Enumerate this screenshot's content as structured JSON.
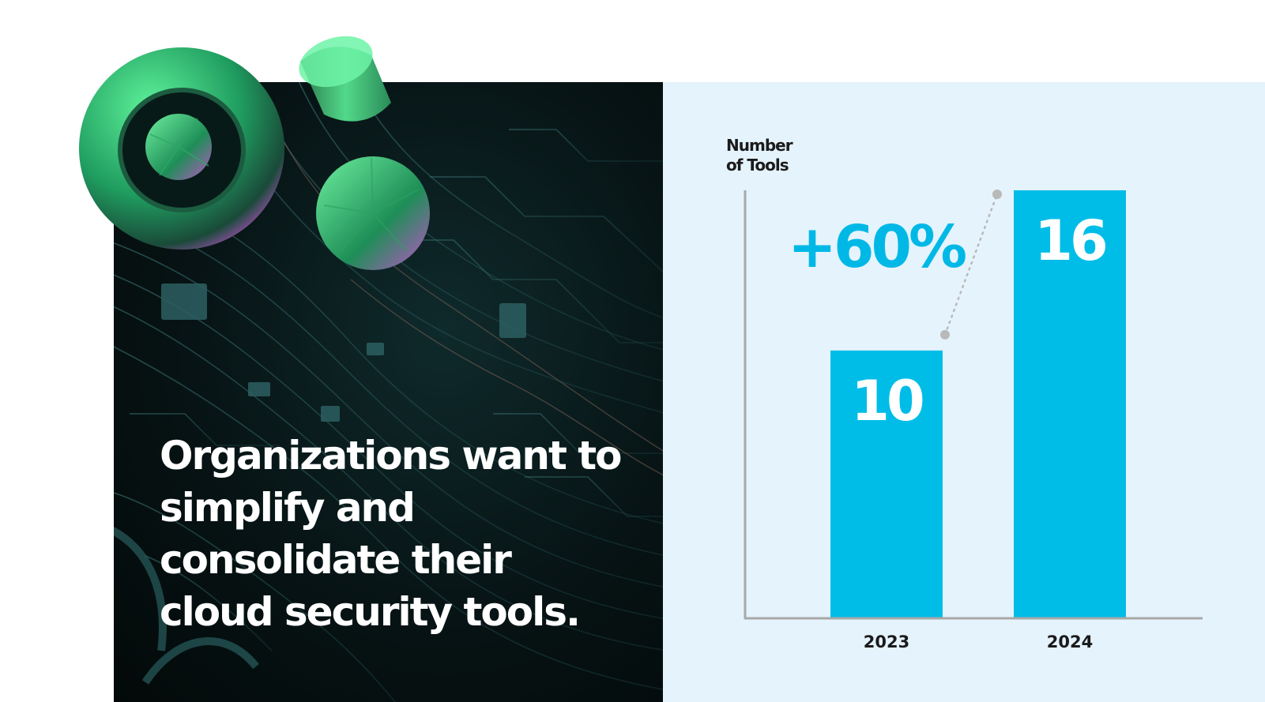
{
  "hero": {
    "headline": "Organizations want to simplify and consolidate their cloud security tools."
  },
  "chart_data": {
    "type": "bar",
    "ylabel": "Number\nof Tools",
    "categories": [
      "2023",
      "2024"
    ],
    "values": [
      10,
      16
    ],
    "ylim": [
      0,
      16
    ],
    "bar_color": "#00bde8",
    "annotation": "+60%",
    "grid": false
  },
  "colors": {
    "panel_background": "#e5f3fd",
    "axis": "#a8a8a8",
    "accent": "#00b8e6"
  }
}
